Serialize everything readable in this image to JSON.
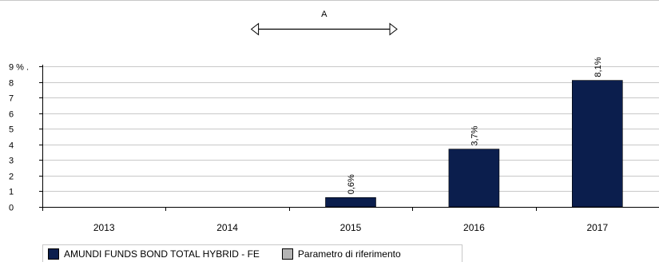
{
  "chart_data": {
    "type": "bar",
    "categories": [
      "2013",
      "2014",
      "2015",
      "2016",
      "2017"
    ],
    "series": [
      {
        "name": "AMUNDI FUNDS BOND TOTAL HYBRID - FE",
        "values": [
          null,
          null,
          0.6,
          3.7,
          8.1
        ],
        "labels": [
          "",
          "",
          "0,6%",
          "3,7%",
          "8,1%"
        ],
        "color": "#0b1e4d"
      },
      {
        "name": "Parametro di riferimento",
        "values": [
          null,
          null,
          null,
          null,
          null
        ],
        "color": "#b4b4b4"
      }
    ],
    "ylim": [
      0,
      9
    ],
    "yticks": [
      "0",
      "1",
      "2",
      "3",
      "4",
      "5",
      "6",
      "7",
      "8",
      "9 % ."
    ],
    "grid": true,
    "annotation": {
      "text": "A",
      "from_category": "2014",
      "to_category": "2015"
    }
  }
}
